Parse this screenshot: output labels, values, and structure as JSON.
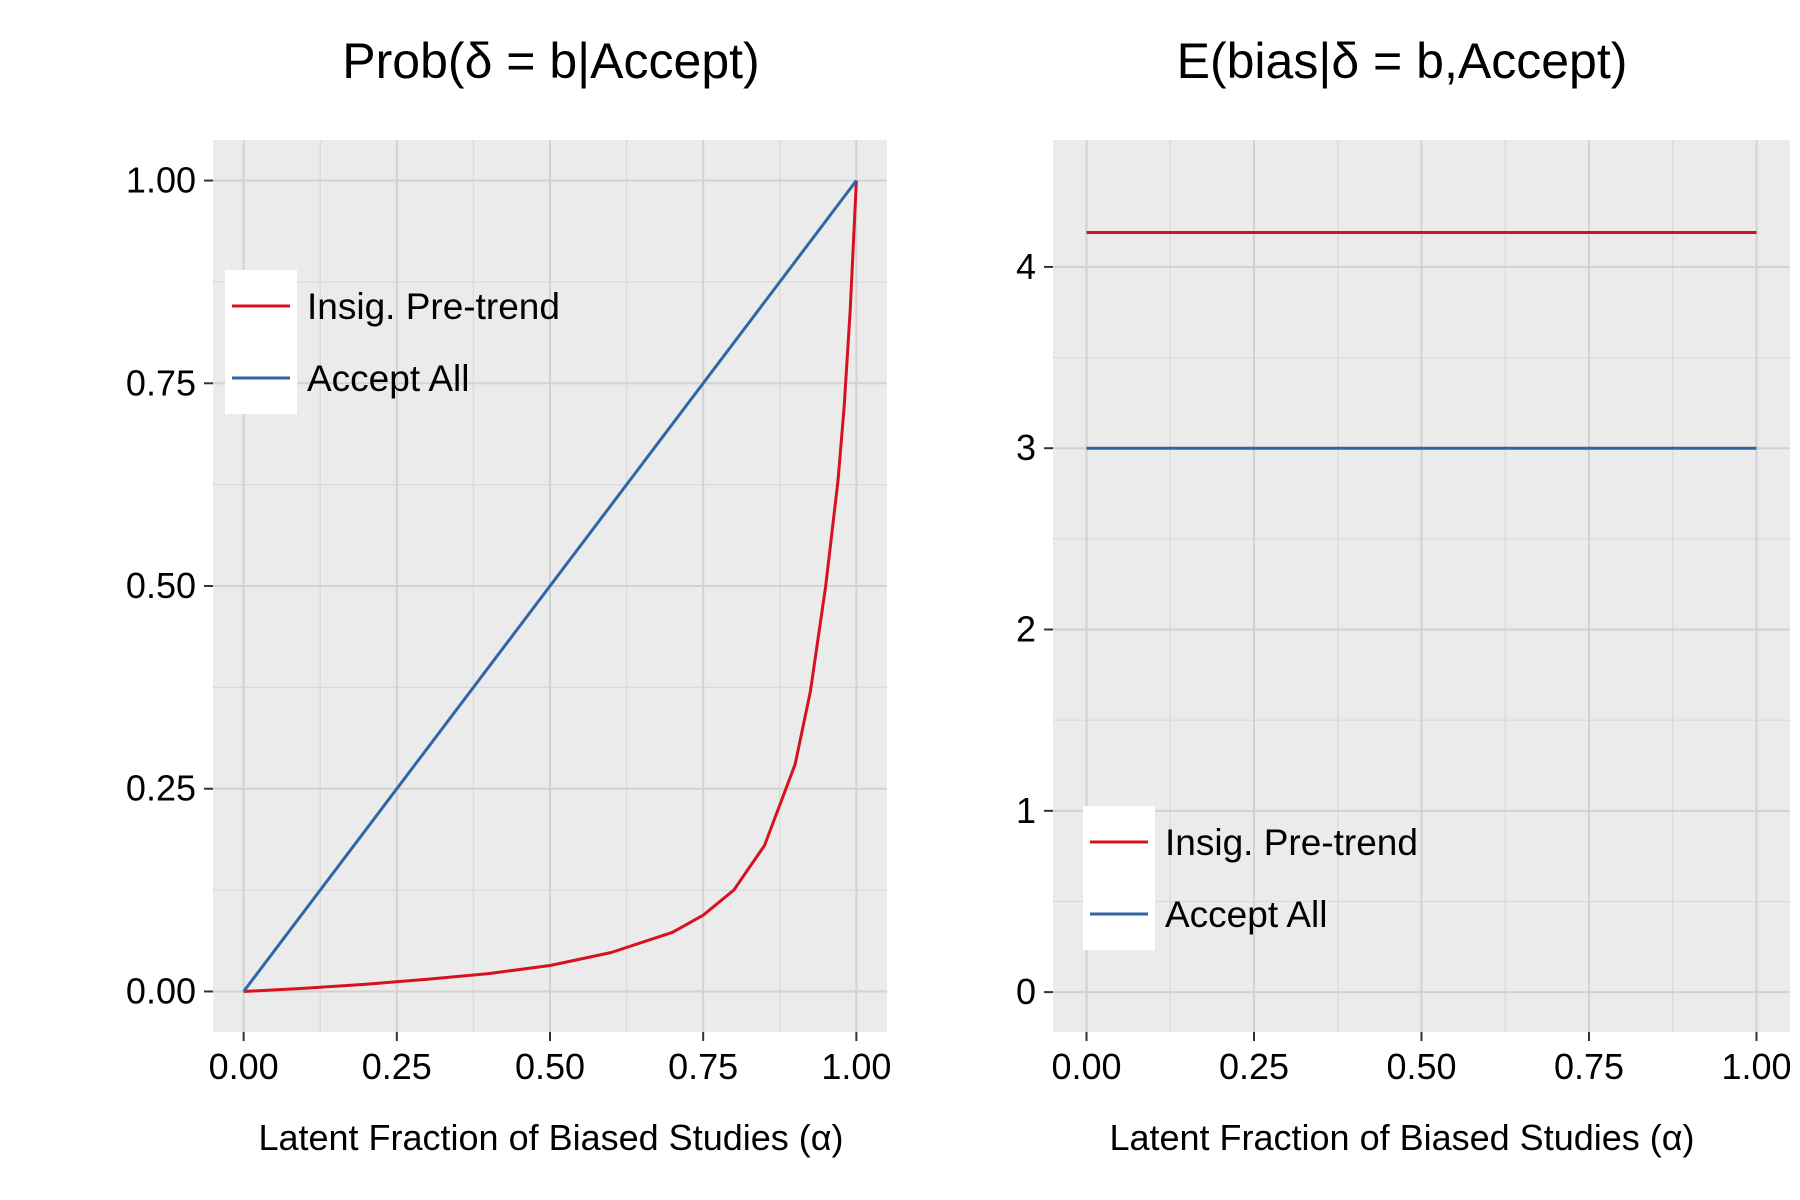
{
  "chart_data": [
    {
      "type": "line",
      "title": "Prob(δ = b|Accept)",
      "xlabel": "Latent Fraction of Biased Studies (α)",
      "ylabel": "",
      "xlim": [
        -0.05,
        1.05
      ],
      "ylim": [
        -0.05,
        1.05
      ],
      "x_ticks": [
        "0.00",
        "0.25",
        "0.50",
        "0.75",
        "1.00"
      ],
      "y_ticks": [
        "0.00",
        "0.25",
        "0.50",
        "0.75",
        "1.00"
      ],
      "grid": true,
      "legend": {
        "position": "upper-left",
        "entries": [
          "Insig. Pre-trend",
          "Accept All"
        ]
      },
      "series": [
        {
          "name": "Insig. Pre-trend",
          "color": "#D7111E",
          "x": [
            0,
            0.1,
            0.2,
            0.3,
            0.4,
            0.5,
            0.6,
            0.7,
            0.75,
            0.8,
            0.85,
            0.9,
            0.925,
            0.95,
            0.97,
            0.98,
            0.99,
            1.0
          ],
          "y": [
            0,
            0.004,
            0.009,
            0.015,
            0.022,
            0.032,
            0.048,
            0.073,
            0.094,
            0.125,
            0.18,
            0.28,
            0.37,
            0.5,
            0.63,
            0.72,
            0.84,
            1.0
          ]
        },
        {
          "name": "Accept All",
          "color": "#2E66A6",
          "x": [
            0,
            1.0
          ],
          "y": [
            0,
            1.0
          ]
        }
      ]
    },
    {
      "type": "line",
      "title": "E(bias|δ = b,Accept)",
      "xlabel": "Latent Fraction of Biased Studies (α)",
      "ylabel": "",
      "xlim": [
        -0.05,
        1.05
      ],
      "ylim": [
        -0.22,
        4.7
      ],
      "x_ticks": [
        "0.00",
        "0.25",
        "0.50",
        "0.75",
        "1.00"
      ],
      "y_ticks": [
        "0",
        "1",
        "2",
        "3",
        "4"
      ],
      "grid": true,
      "legend": {
        "position": "lower-left",
        "entries": [
          "Insig. Pre-trend",
          "Accept All"
        ]
      },
      "series": [
        {
          "name": "Insig. Pre-trend",
          "color": "#D7111E",
          "x": [
            0,
            1.0
          ],
          "y": [
            4.19,
            4.19
          ]
        },
        {
          "name": "Accept All",
          "color": "#2E66A6",
          "x": [
            0,
            1.0
          ],
          "y": [
            3.0,
            3.0
          ]
        }
      ]
    }
  ]
}
